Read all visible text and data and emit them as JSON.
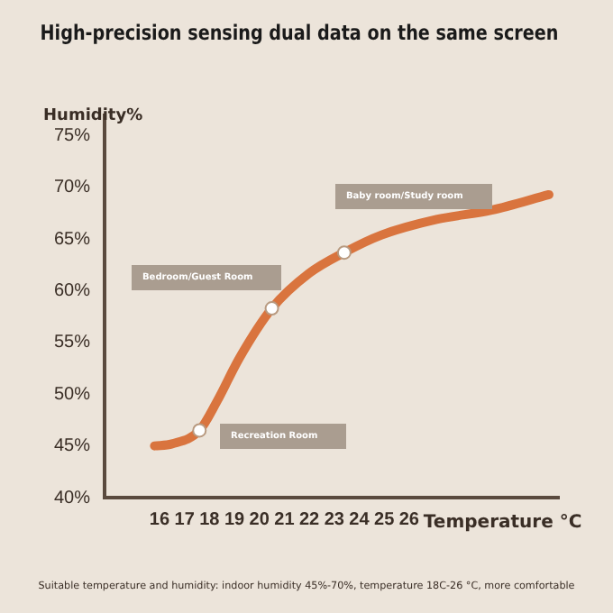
{
  "chart_data": {
    "type": "line",
    "title": "High-precision sensing dual data on the same screen",
    "xlabel": "Temperature °C",
    "ylabel": "Humidity%",
    "series": [
      {
        "color": "#d9743e",
        "marker": "none",
        "x": [
          15.8,
          16.5,
          17.6,
          18.3,
          19.2,
          20.5,
          22,
          23.4,
          24.9,
          27.1,
          29.3,
          31.6
        ],
        "values": [
          45,
          45.2,
          46.5,
          49.3,
          53.5,
          58.3,
          61.7,
          63.7,
          65.4,
          66.9,
          67.8,
          69.3
        ]
      },
      {
        "type": "scatter",
        "color": "#ffffff",
        "marker": "circle",
        "x": [
          17.6,
          20.5,
          23.4
        ],
        "values": [
          46.5,
          58.3,
          63.7
        ]
      }
    ],
    "xlim": [
      13.8,
      32
    ],
    "xticks": [
      16,
      17,
      18,
      19,
      20,
      21,
      22,
      23,
      24,
      25,
      26
    ],
    "ylim": [
      40,
      77
    ],
    "yticks": [
      {
        "value": 40,
        "label": "40%"
      },
      {
        "value": 45,
        "label": "45%"
      },
      {
        "value": 50,
        "label": "50%"
      },
      {
        "value": 55,
        "label": "55%"
      },
      {
        "value": 60,
        "label": "60%"
      },
      {
        "value": 65,
        "label": "65%"
      },
      {
        "value": 70,
        "label": "70%"
      },
      {
        "value": 75,
        "label": "75%"
      }
    ],
    "grid": false,
    "legend": false,
    "annotations": [
      "Recreation Room",
      "Bedroom/Guest Room",
      "Baby room/Study room",
      "Suitable temperature and humidity: indoor humidity 45%-70%, temperature 18C-26 °C, more comfortable"
    ]
  }
}
